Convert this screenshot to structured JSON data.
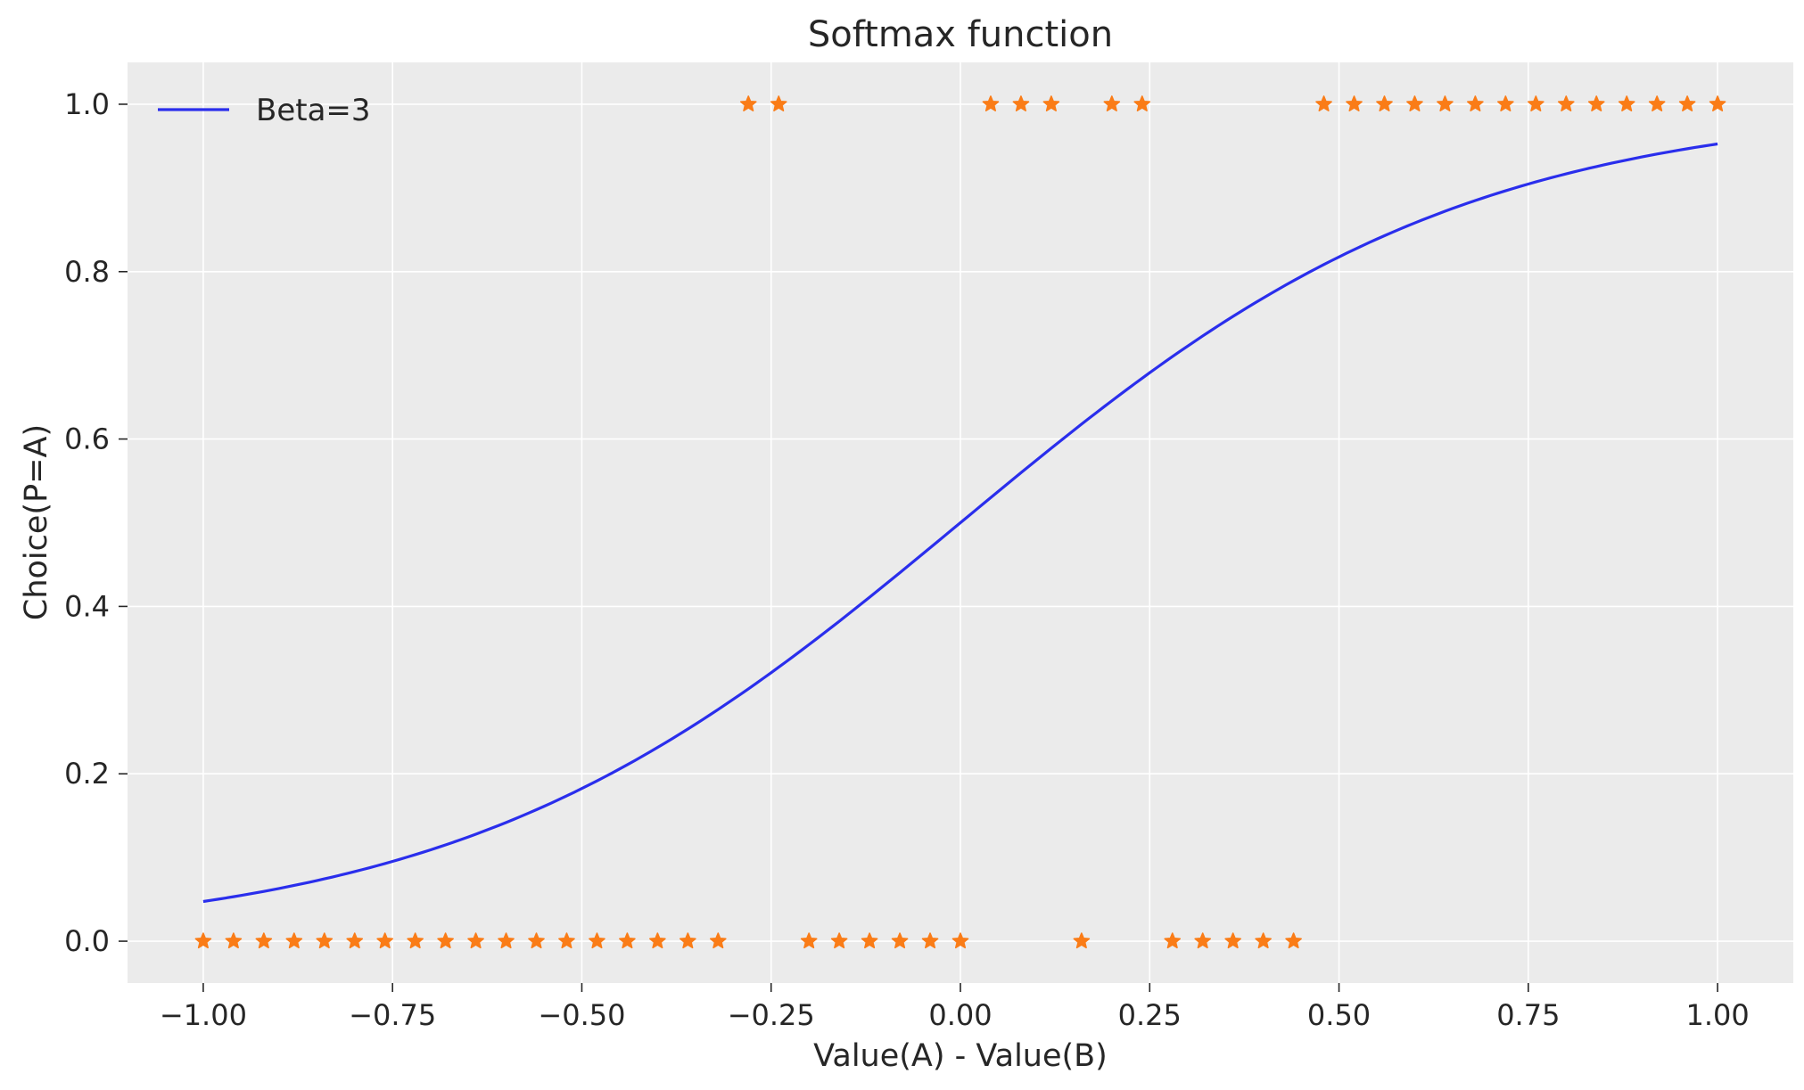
{
  "chart_data": {
    "type": "line",
    "title": "Softmax function",
    "xlabel": "Value(A) - Value(B)",
    "ylabel": "Choice(P=A)",
    "xlim": [
      -1.1,
      1.1
    ],
    "ylim": [
      -0.05,
      1.05
    ],
    "grid": true,
    "background": "#ebebeb",
    "legend_placement": "top-left",
    "x_ticks": [
      -1.0,
      -0.75,
      -0.5,
      -0.25,
      0.0,
      0.25,
      0.5,
      0.75,
      1.0
    ],
    "x_tick_labels": [
      "−1.00",
      "−0.75",
      "−0.50",
      "−0.25",
      "0.00",
      "0.25",
      "0.50",
      "0.75",
      "1.00"
    ],
    "y_ticks": [
      0.0,
      0.2,
      0.4,
      0.6,
      0.8,
      1.0
    ],
    "y_tick_labels": [
      "0.0",
      "0.2",
      "0.4",
      "0.6",
      "0.8",
      "1.0"
    ],
    "series": [
      {
        "name": "Beta=3",
        "type": "line",
        "color": "#2a2eec",
        "beta": 3,
        "x_range": [
          -1.0,
          1.0
        ]
      },
      {
        "type": "scatter",
        "marker": "star",
        "color": "#fa7c17",
        "x": [
          -1.0,
          -0.96,
          -0.92,
          -0.88,
          -0.84,
          -0.8,
          -0.76,
          -0.72,
          -0.68,
          -0.64,
          -0.6,
          -0.56,
          -0.52,
          -0.48,
          -0.44,
          -0.4,
          -0.36,
          -0.32,
          -0.28,
          -0.24,
          -0.2,
          -0.16,
          -0.12,
          -0.08,
          -0.04,
          0.0,
          0.04,
          0.08,
          0.12,
          0.16,
          0.2,
          0.24,
          0.28,
          0.32,
          0.36,
          0.4,
          0.44,
          0.48,
          0.52,
          0.56,
          0.6,
          0.64,
          0.68,
          0.72,
          0.76,
          0.8,
          0.84,
          0.88,
          0.92,
          0.96,
          1.0
        ],
        "y": [
          0,
          0,
          0,
          0,
          0,
          0,
          0,
          0,
          0,
          0,
          0,
          0,
          0,
          0,
          0,
          0,
          0,
          0,
          1,
          1,
          0,
          0,
          0,
          0,
          0,
          0,
          1,
          1,
          1,
          0,
          1,
          1,
          0,
          0,
          0,
          0,
          0,
          1,
          1,
          1,
          1,
          1,
          1,
          1,
          1,
          1,
          1,
          1,
          1,
          1,
          1
        ]
      }
    ]
  }
}
